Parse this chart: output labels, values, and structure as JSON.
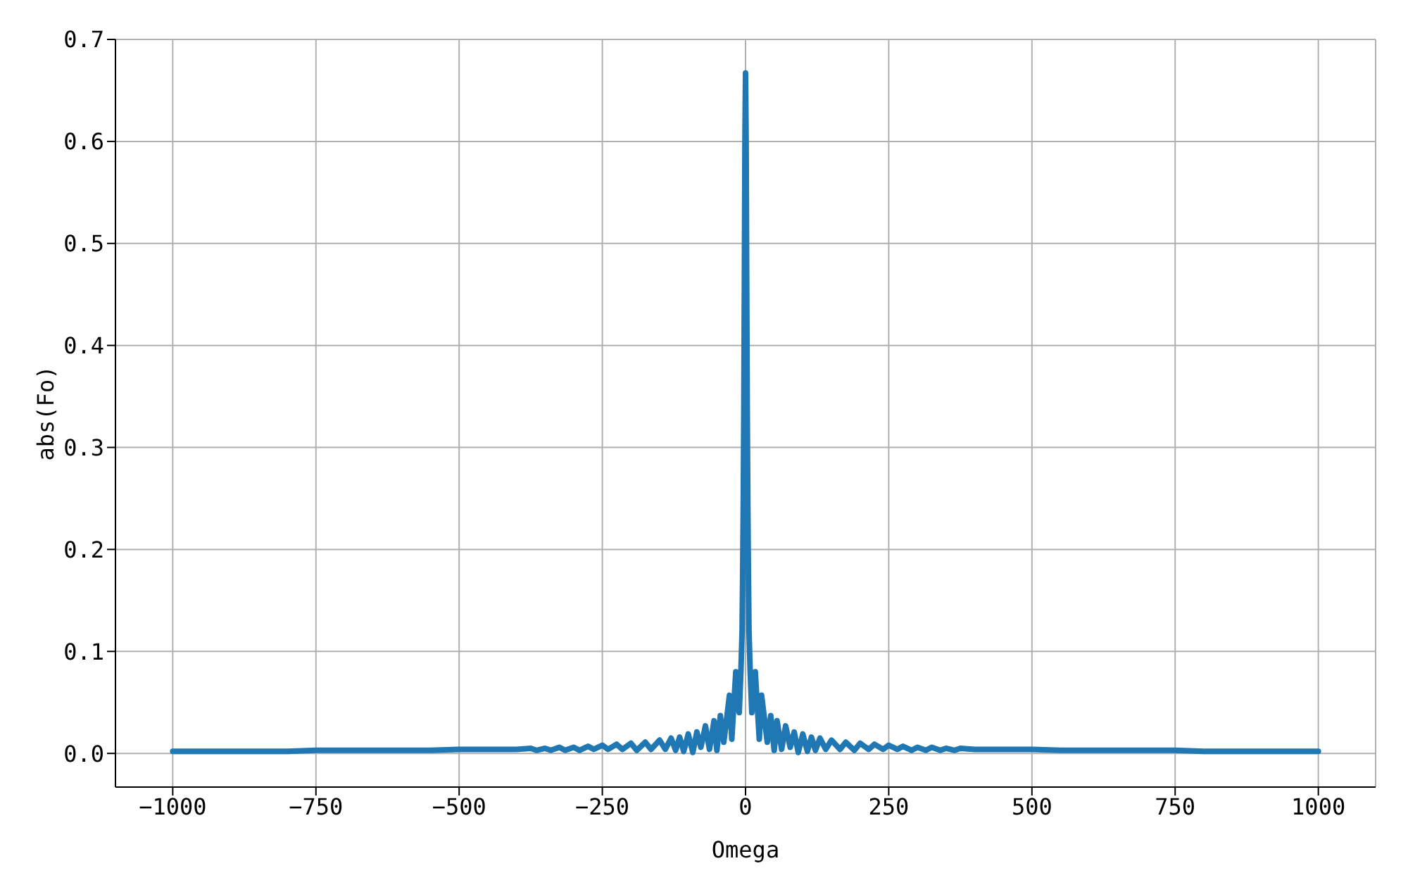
{
  "chart_data": {
    "type": "line",
    "xlabel": "Omega",
    "ylabel": "abs(Fo)",
    "x": [
      -1000,
      -950,
      -900,
      -850,
      -800,
      -750,
      -700,
      -650,
      -600,
      -550,
      -500,
      -450,
      -400,
      -375,
      -365,
      -350,
      -340,
      -325,
      -315,
      -300,
      -290,
      -275,
      -265,
      -250,
      -240,
      -225,
      -215,
      -200,
      -190,
      -175,
      -165,
      -150,
      -140,
      -130,
      -122,
      -115,
      -108,
      -100,
      -92,
      -85,
      -78,
      -70,
      -63,
      -55,
      -50,
      -44,
      -38,
      -28,
      -24,
      -17,
      -11,
      -8,
      -6,
      -5,
      -4,
      -3,
      -2,
      -1,
      0,
      1,
      2,
      3,
      4,
      5,
      6,
      8,
      11,
      17,
      24,
      28,
      38,
      44,
      50,
      55,
      63,
      70,
      78,
      85,
      92,
      100,
      108,
      115,
      122,
      130,
      140,
      150,
      165,
      175,
      190,
      200,
      215,
      225,
      240,
      250,
      265,
      275,
      290,
      300,
      315,
      325,
      340,
      350,
      365,
      375,
      400,
      450,
      500,
      550,
      600,
      650,
      700,
      750,
      800,
      850,
      900,
      950,
      1000
    ],
    "series": [
      {
        "color": "#1f77b4",
        "values": [
          0.002,
          0.002,
          0.002,
          0.002,
          0.002,
          0.003,
          0.003,
          0.003,
          0.003,
          0.003,
          0.004,
          0.004,
          0.004,
          0.005,
          0.003,
          0.005,
          0.003,
          0.006,
          0.003,
          0.006,
          0.003,
          0.007,
          0.004,
          0.008,
          0.004,
          0.009,
          0.004,
          0.01,
          0.003,
          0.011,
          0.004,
          0.013,
          0.004,
          0.015,
          0.003,
          0.016,
          0.002,
          0.019,
          0.001,
          0.021,
          0.006,
          0.027,
          0.004,
          0.032,
          0.003,
          0.037,
          0.011,
          0.057,
          0.014,
          0.08,
          0.04,
          0.082,
          0.12,
          0.176,
          0.24,
          0.333,
          0.46,
          0.6,
          0.667,
          0.6,
          0.46,
          0.333,
          0.24,
          0.176,
          0.12,
          0.082,
          0.04,
          0.08,
          0.014,
          0.057,
          0.011,
          0.037,
          0.003,
          0.032,
          0.004,
          0.027,
          0.006,
          0.021,
          0.001,
          0.019,
          0.002,
          0.016,
          0.003,
          0.015,
          0.004,
          0.013,
          0.004,
          0.011,
          0.003,
          0.01,
          0.004,
          0.009,
          0.004,
          0.008,
          0.004,
          0.007,
          0.003,
          0.006,
          0.003,
          0.006,
          0.003,
          0.005,
          0.003,
          0.005,
          0.004,
          0.004,
          0.004,
          0.003,
          0.003,
          0.003,
          0.003,
          0.003,
          0.002,
          0.002,
          0.002,
          0.002,
          0.002
        ]
      }
    ],
    "xlim": [
      -1100,
      1100
    ],
    "ylim": [
      -0.033,
      0.7
    ],
    "xticks": [
      {
        "value": -1000,
        "label": "−1000"
      },
      {
        "value": -750,
        "label": "−750"
      },
      {
        "value": -500,
        "label": "−500"
      },
      {
        "value": -250,
        "label": "−250"
      },
      0,
      250,
      500,
      750,
      1000
    ],
    "yticks": [
      {
        "value": 0,
        "label": "0.0"
      },
      0.1,
      0.2,
      0.3,
      0.4,
      0.5,
      0.6,
      0.7
    ],
    "grid": true,
    "marker": "none",
    "line_style": "solid"
  }
}
